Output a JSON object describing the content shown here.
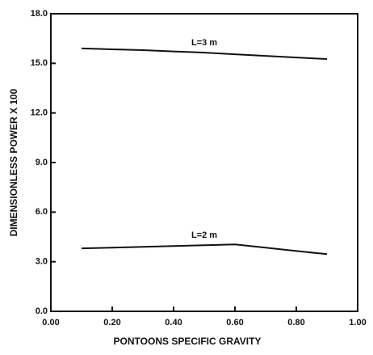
{
  "chart_data": {
    "type": "line",
    "xlabel": "PONTOONS SPECIFIC GRAVITY",
    "ylabel": "DIMENSIONLESS POWER X 100",
    "x": [
      0.1,
      0.2,
      0.3,
      0.4,
      0.5,
      0.6,
      0.7,
      0.8,
      0.9
    ],
    "series": [
      {
        "name": "L=3 m",
        "color": "#111111",
        "values": [
          15.9,
          15.85,
          15.8,
          15.72,
          15.65,
          15.55,
          15.45,
          15.35,
          15.26
        ]
      },
      {
        "name": "L=2 m",
        "color": "#111111",
        "values": [
          3.81,
          3.85,
          3.9,
          3.95,
          4.0,
          4.05,
          3.85,
          3.65,
          3.46
        ]
      }
    ],
    "xlim": [
      0,
      1
    ],
    "xticks": [
      {
        "value": 0,
        "label": "0.00"
      },
      {
        "value": 0.2,
        "label": "0.20"
      },
      {
        "value": 0.4,
        "label": "0.40"
      },
      {
        "value": 0.6,
        "label": "0.60"
      },
      {
        "value": 0.8,
        "label": "0.80"
      },
      {
        "value": 1,
        "label": "1.00"
      }
    ],
    "ylim": [
      0,
      18
    ],
    "yticks": [
      {
        "value": 0,
        "label": "0.0"
      },
      {
        "value": 3,
        "label": "3.0"
      },
      {
        "value": 6,
        "label": "6.0"
      },
      {
        "value": 9,
        "label": "9.0"
      },
      {
        "value": 12,
        "label": "12.0"
      },
      {
        "value": 15,
        "label": "15.0"
      },
      {
        "value": 18,
        "label": "18.0"
      }
    ]
  }
}
